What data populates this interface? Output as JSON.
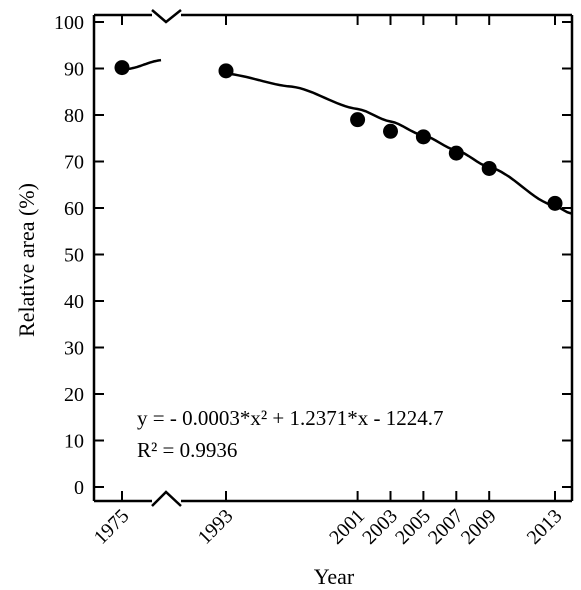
{
  "chart_data": {
    "type": "scatter",
    "xlabel": "Year",
    "ylabel": "Relative area (%)",
    "ylim": [
      0,
      100
    ],
    "yticks": [
      0,
      10,
      20,
      30,
      40,
      50,
      60,
      70,
      80,
      90,
      100
    ],
    "xticks": [
      "1975",
      "1993",
      "2001",
      "2003",
      "2005",
      "2007",
      "2009",
      "2013"
    ],
    "x_axis_break": "between 1975 and 1993",
    "series": [
      {
        "points": [
          {
            "x": 1975,
            "y": 90.2
          },
          {
            "x": 1993,
            "y": 89.5
          },
          {
            "x": 2001,
            "y": 79.0
          },
          {
            "x": 2003,
            "y": 76.5
          },
          {
            "x": 2005,
            "y": 75.3
          },
          {
            "x": 2007,
            "y": 71.8
          },
          {
            "x": 2009,
            "y": 68.5
          },
          {
            "x": 2013,
            "y": 61.0
          }
        ]
      }
    ],
    "fit": {
      "equation": "y = - 0.0003*x² + 1.2371*x - 1224.7",
      "r_squared": "R² = 0.9936"
    },
    "grid": false,
    "legend": "none"
  }
}
